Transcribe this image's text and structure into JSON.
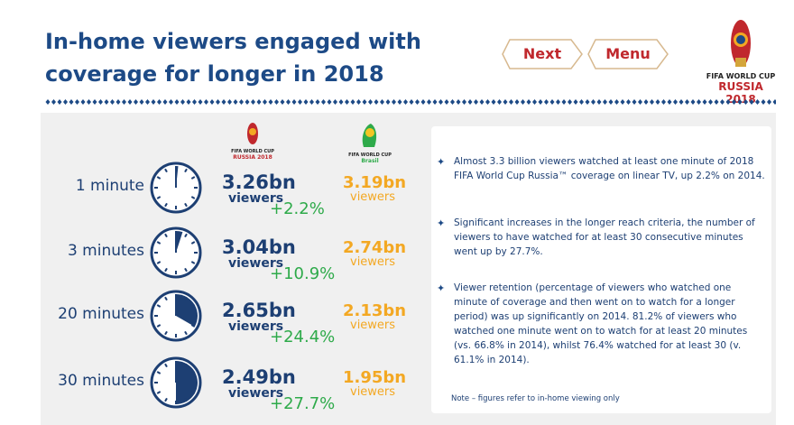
{
  "header": {
    "title_lines": [
      "In-home viewers engaged with",
      "coverage for longer in 2018"
    ]
  },
  "nav": {
    "next": "Next",
    "menu": "Menu"
  },
  "logo": {
    "line1": "FIFA WORLD CUP",
    "line2": "RUSSIA 2018"
  },
  "columns": [
    {
      "logo_line1": "FIFA WORLD CUP",
      "logo_line2": "RUSSIA 2018"
    },
    {
      "logo_line1": "FIFA WORLD CUP",
      "logo_line2": "Brasil"
    }
  ],
  "rows": [
    {
      "label": "1 minute",
      "value_2018": "3.26bn",
      "unit_2018": "viewers",
      "change": "+2.2%",
      "value_2014": "3.19bn",
      "unit_2014": "viewers"
    },
    {
      "label": "3 minutes",
      "value_2018": "3.04bn",
      "unit_2018": "viewers",
      "change": "+10.9%",
      "value_2014": "2.74bn",
      "unit_2014": "viewers"
    },
    {
      "label": "20 minutes",
      "value_2018": "2.65bn",
      "unit_2018": "viewers",
      "change": "+24.4%",
      "value_2014": "2.13bn",
      "unit_2014": "viewers"
    },
    {
      "label": "30 minutes",
      "value_2018": "2.49bn",
      "unit_2018": "viewers",
      "change": "+27.7%",
      "value_2014": "1.95bn",
      "unit_2014": "viewers"
    }
  ],
  "notes": {
    "bullets": [
      "Almost 3.3 billion viewers watched at least one minute of 2018 FIFA World Cup Russia™ coverage on linear TV, up 2.2% on 2014.",
      "Significant increases in the longer reach criteria, the number of viewers to have watched for at least 30 consecutive minutes went up by 27.7%.",
      "Viewer retention (percentage of viewers who watched one minute of coverage and then went on to watch for a longer period) was up significantly on 2014. 81.2% of viewers who watched one minute went on to watch for at least 20 minutes (vs. 66.8% in 2014), whilst 76.4% watched for at least 30 (v. 61.1% in 2014)."
    ],
    "footnote": "Note – figures refer to in-home viewing only"
  }
}
